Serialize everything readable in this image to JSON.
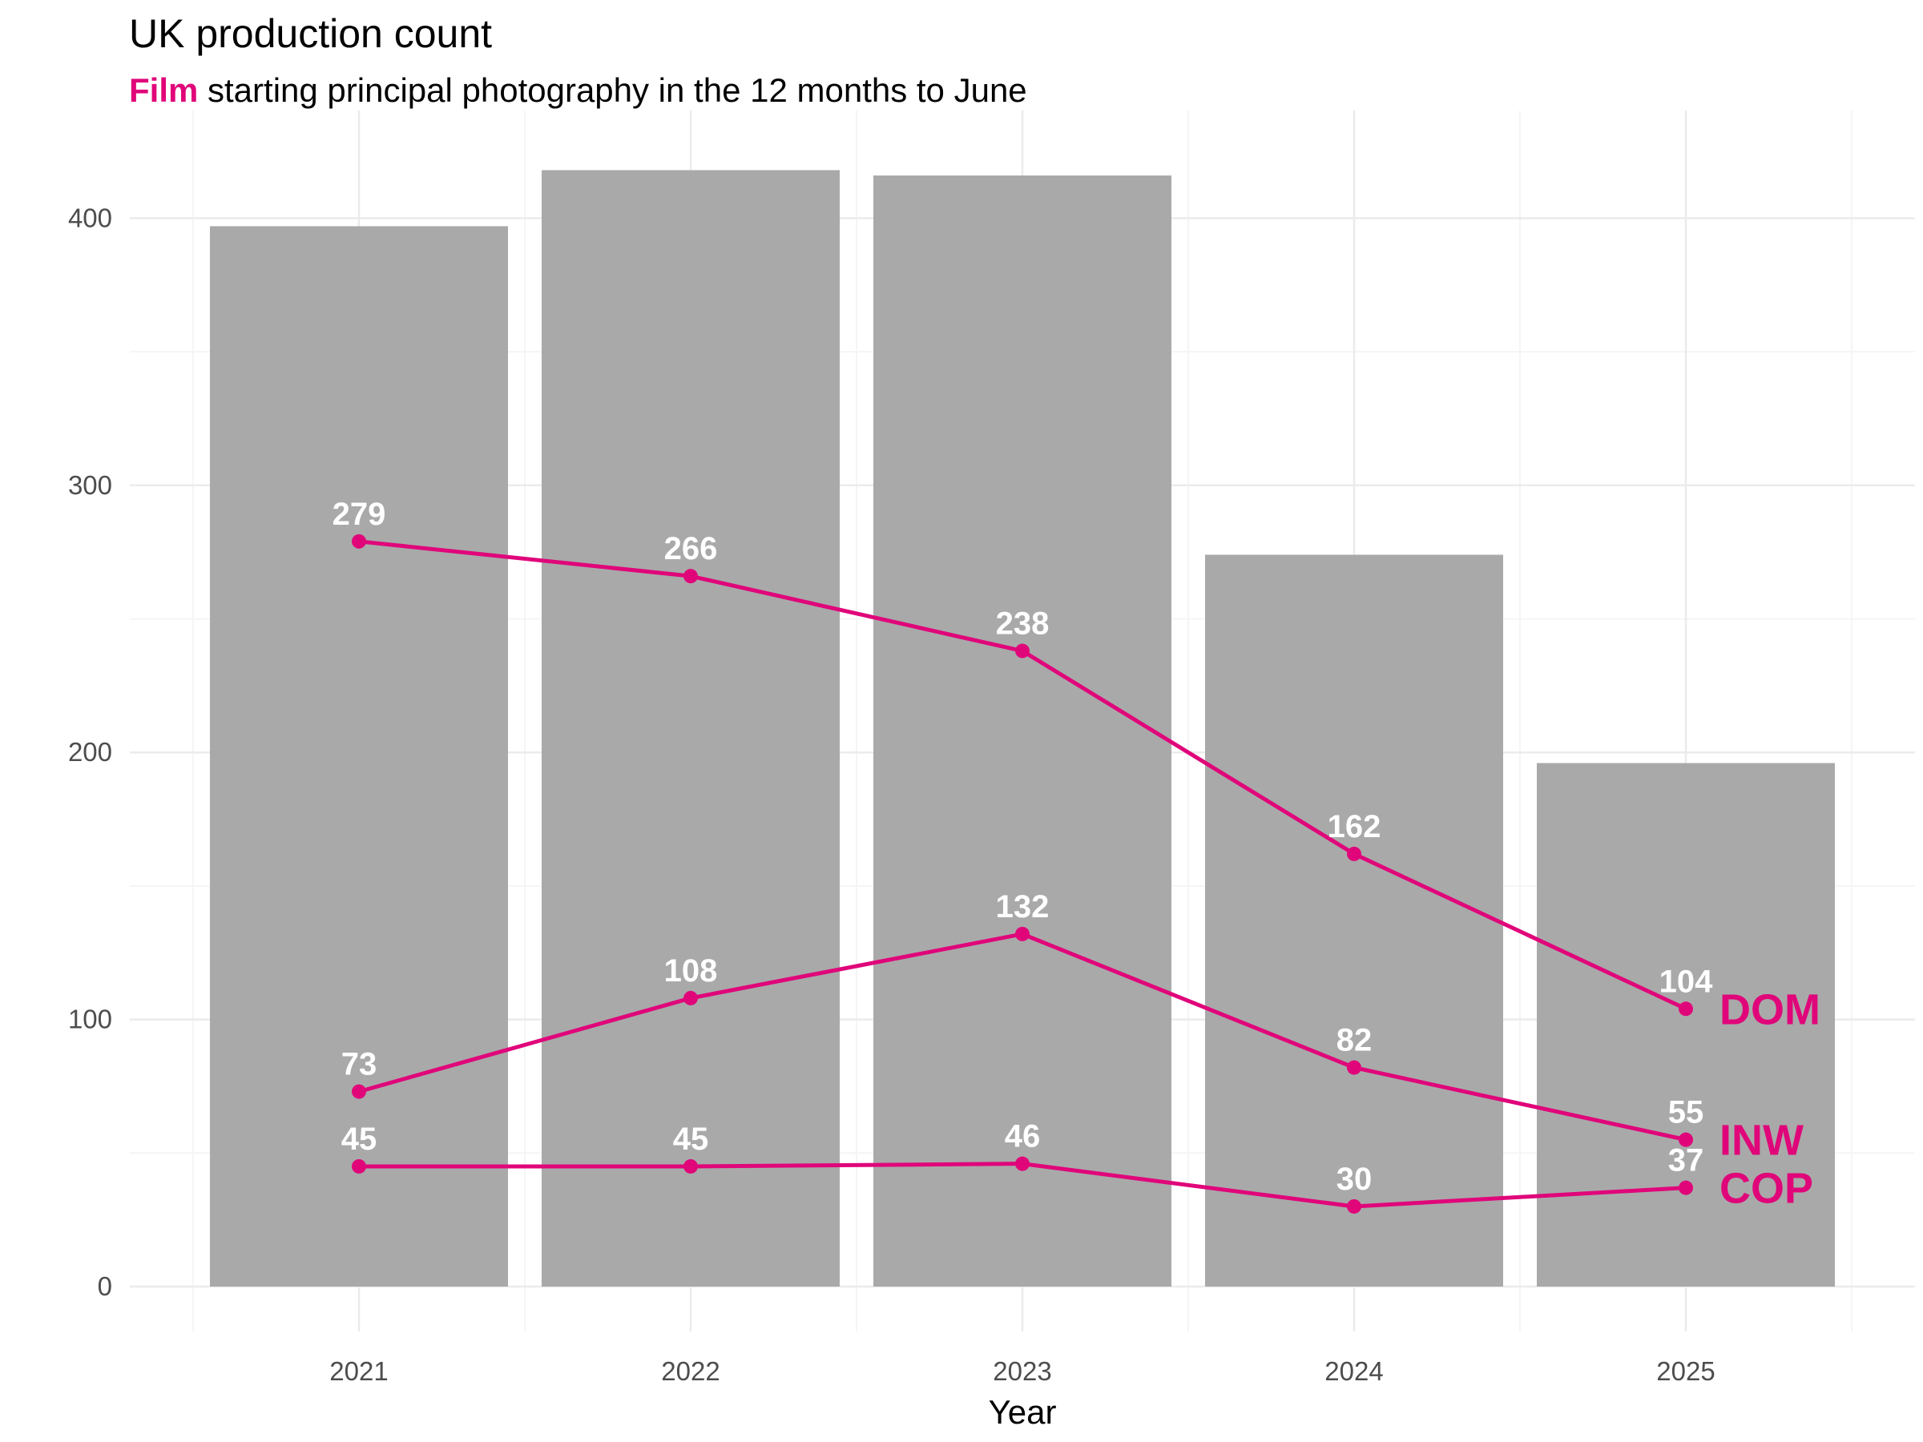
{
  "title": "UK production count",
  "subtitle": {
    "highlight": "Film",
    "rest": " starting principal photography in the 12 months to June"
  },
  "colors": {
    "accent": "#e0067a",
    "bar": "#a9a9a9",
    "grid_major": "#ebebeb",
    "grid_minor": "#f5f5f5",
    "tick_text": "#4d4d4d",
    "data_label": "#ffffff"
  },
  "chart_data": {
    "type": "bar",
    "overlay_type": "line",
    "title": "UK production count",
    "subtitle": "Film starting principal photography in the 12 months to June",
    "xlabel": "Year",
    "ylabel": "",
    "categories": [
      "2021",
      "2022",
      "2023",
      "2024",
      "2025"
    ],
    "bars": {
      "values": [
        397,
        418,
        416,
        274,
        196
      ]
    },
    "series": [
      {
        "name": "DOM",
        "values": [
          279,
          266,
          238,
          162,
          104
        ]
      },
      {
        "name": "INW",
        "values": [
          73,
          108,
          132,
          82,
          55
        ]
      },
      {
        "name": "COP",
        "values": [
          45,
          45,
          46,
          30,
          37
        ]
      }
    ],
    "y_ticks": [
      0,
      100,
      200,
      300,
      400
    ],
    "ylim": [
      0,
      440
    ],
    "grid": true,
    "legend": "none; series names labelled at the right end of each line"
  }
}
